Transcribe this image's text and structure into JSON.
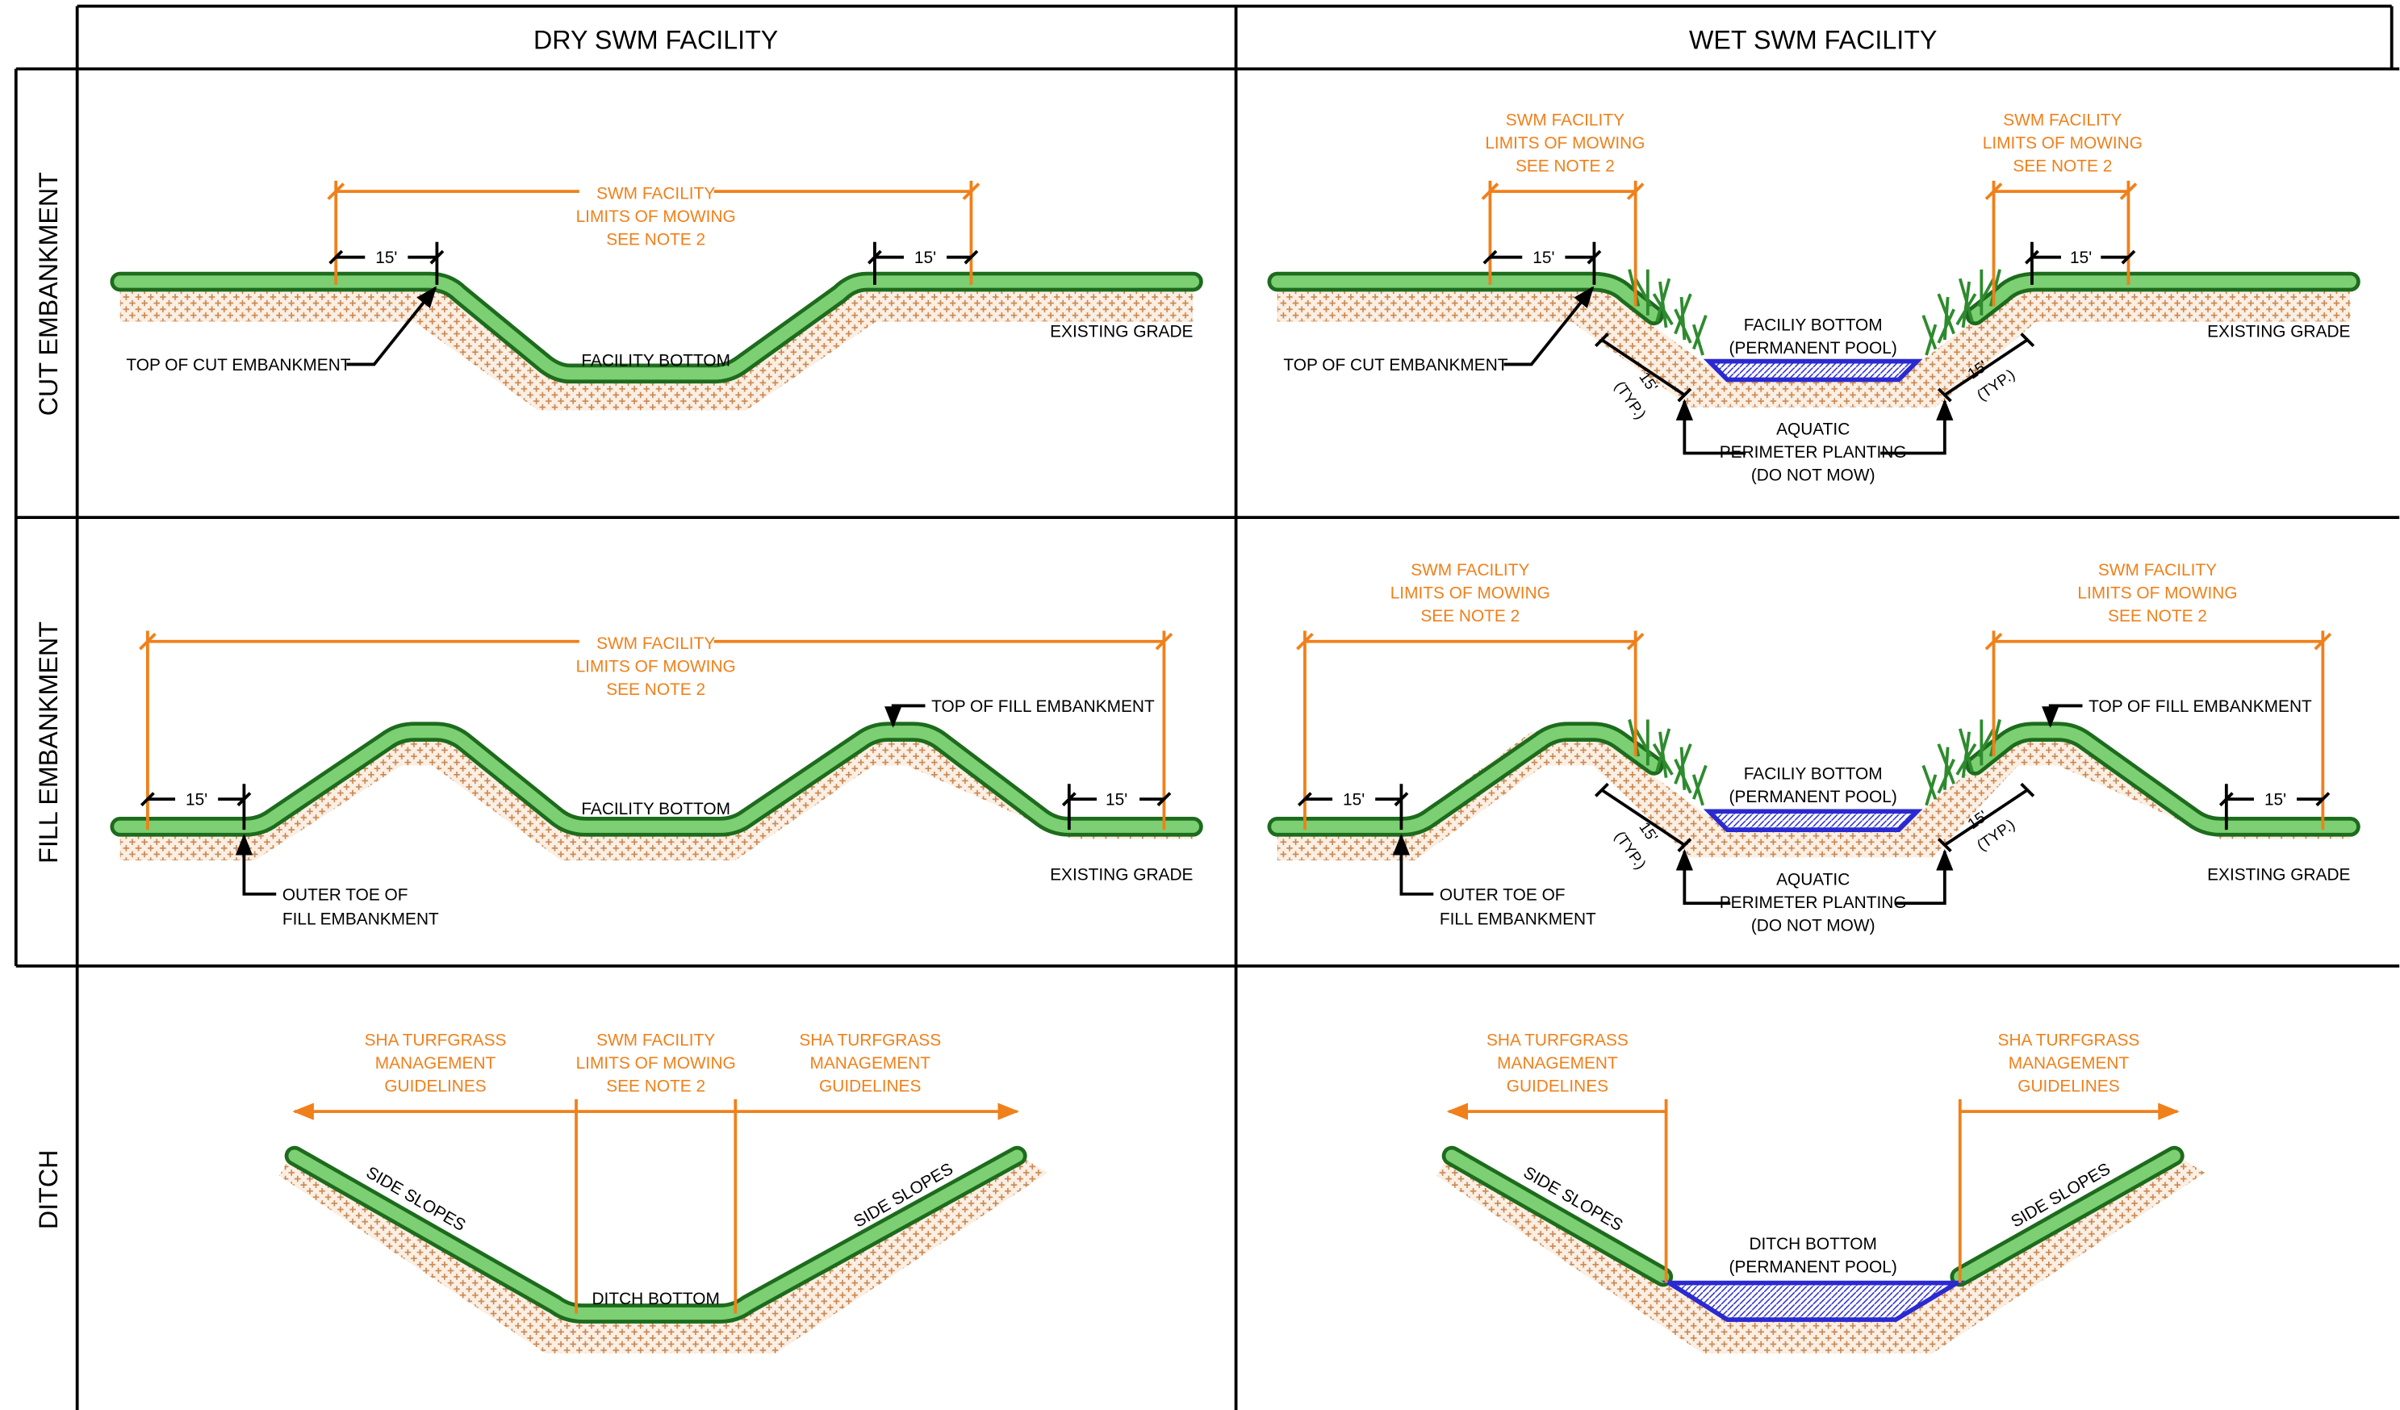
{
  "columns": {
    "dry": "DRY SWM FACILITY",
    "wet": "WET SWM FACILITY"
  },
  "rows": {
    "cut": "CUT EMBANKMENT",
    "fill": "FILL EMBANKMENT",
    "ditch": "DITCH"
  },
  "labels": {
    "swm_line1": "SWM  FACILITY",
    "swm_line2": "LIMITS  OF  MOWING",
    "swm_line3": "SEE  NOTE  2",
    "dim_15": "15'",
    "existing_grade": "EXISTING  GRADE",
    "facility_bottom": "FACILITY  BOTTOM",
    "top_of_cut": "TOP  OF  CUT  EMBANKMENT",
    "top_of_fill": "TOP  OF  FILL  EMBANKMENT",
    "outer_toe_1": "OUTER  TOE  OF",
    "outer_toe_2": "FILL  EMBANKMENT",
    "faciliy_bottom": "FACILIY  BOTTOM",
    "permanent_pool": "(PERMANENT  POOL)",
    "typ": "(TYP.)",
    "aquatic_1": "AQUATIC",
    "aquatic_2": "PERIMETER  PLANTING",
    "aquatic_3": "(DO  NOT  MOW)",
    "sha_1": "SHA  TURFGRASS",
    "sha_2": "MANAGEMENT",
    "sha_3": "GUIDELINES",
    "side_slopes": "SIDE  SLOPES",
    "ditch_bottom": "DITCH  BOTTOM"
  },
  "colors": {
    "turf": "#7ccf72",
    "turf_edge": "#1d6b1d",
    "dimension": "#f0801a",
    "water": "#2a2ad0",
    "soil": "#c98a55"
  },
  "icons": [
    "aquatic-grass-icon",
    "arrowhead-icon",
    "dimension-tick-icon"
  ]
}
